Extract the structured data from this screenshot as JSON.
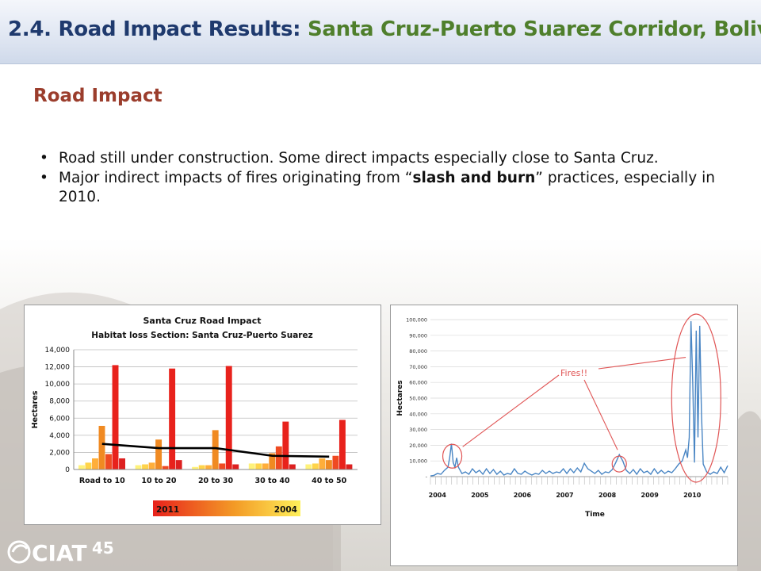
{
  "slide": {
    "title_prefix": "2.4.  Road Impact Results: ",
    "title_suffix": "Santa Cruz-Puerto Suarez Corridor, Bolivia",
    "subheading": "Road Impact",
    "bullets": [
      {
        "parts": [
          {
            "text": "Road still under construction.  Some direct impacts especially close to Santa Cruz.",
            "bold": false
          }
        ]
      },
      {
        "parts": [
          {
            "text": "Major indirect impacts of fires originating from “",
            "bold": false
          },
          {
            "text": "slash and burn",
            "bold": true
          },
          {
            "text": "” practices, especially in 2010.",
            "bold": false
          }
        ]
      }
    ],
    "logo_text": "CIAT",
    "logo_number": "45"
  },
  "colors": {
    "title_dark": "#1f3a6e",
    "title_green": "#4f7f2c",
    "subheading": "#9b3d2c",
    "line_blue": "#4a86c4",
    "annotation_red": "#e05555"
  },
  "chart_data": [
    {
      "type": "bar",
      "title": "Santa Cruz Road Impact",
      "subtitle": "Habitat loss Section: Santa Cruz-Puerto Suarez",
      "ylabel": "Hectares",
      "xlabel": "",
      "ylim": [
        0,
        14000
      ],
      "yticks": [
        0,
        2000,
        4000,
        6000,
        8000,
        10000,
        12000,
        14000
      ],
      "ytick_labels": [
        "0",
        "2,000",
        "4,000",
        "6,000",
        "8,000",
        "10,000",
        "12,000",
        "14,000"
      ],
      "grid": true,
      "categories": [
        "Road to 10",
        "10 to 20",
        "20 to 30",
        "30 to 40",
        "40 to 50"
      ],
      "series_colors": [
        "#fff27a",
        "#ffd44a",
        "#ffae3a",
        "#f08a22",
        "#ef4a22",
        "#e8221c"
      ],
      "series": [
        {
          "values": [
            500,
            500,
            300,
            700,
            600
          ]
        },
        {
          "values": [
            800,
            600,
            500,
            700,
            700
          ]
        },
        {
          "values": [
            1300,
            800,
            500,
            700,
            1300
          ]
        },
        {
          "values": [
            5100,
            3500,
            4600,
            1900,
            1100
          ]
        },
        {
          "values": [
            1800,
            400,
            700,
            2700,
            1600
          ]
        },
        {
          "values": [
            12200,
            11800,
            12100,
            5600,
            5800
          ]
        }
      ],
      "extra_bars": [
        1300,
        1100,
        600,
        600,
        600
      ],
      "trend_line": [
        3000,
        2500,
        2500,
        1600,
        1500
      ],
      "legend_gradient": {
        "start_label": "2011",
        "end_label": "2004"
      }
    },
    {
      "type": "line",
      "ylabel": "Hectares",
      "xlabel": "Time",
      "ylim": [
        0,
        100000
      ],
      "yticks": [
        0,
        10000,
        20000,
        30000,
        40000,
        50000,
        60000,
        70000,
        80000,
        90000,
        100000
      ],
      "ytick_labels": [
        "-",
        "10,000",
        "20,000",
        "30,000",
        "40,000",
        "50,000",
        "60,000",
        "70,000",
        "80,000",
        "90,000",
        "100,000"
      ],
      "years": [
        "2004",
        "2005",
        "2006",
        "2007",
        "2008",
        "2009",
        "2010"
      ],
      "annotation": "Fires!!",
      "x": [
        0,
        2,
        4,
        6,
        8,
        10,
        11,
        12,
        13,
        14,
        15,
        16,
        18,
        20,
        22,
        24,
        26,
        28,
        30,
        32,
        34,
        36,
        38,
        40,
        42,
        44,
        46,
        48,
        50,
        52,
        54,
        56,
        58,
        60,
        62,
        64,
        66,
        68,
        70,
        72,
        74,
        76,
        78,
        80,
        82,
        84,
        86,
        88,
        90,
        92,
        94,
        96,
        98,
        100,
        102,
        104,
        106,
        108,
        110,
        112,
        114,
        116,
        118,
        120,
        122,
        124,
        126,
        128,
        130,
        132,
        134,
        136,
        138,
        140,
        142,
        144,
        146,
        147,
        148,
        149,
        150,
        151,
        152,
        153,
        154,
        155,
        156,
        158,
        160,
        162,
        164,
        166,
        168,
        170
      ],
      "values": [
        500,
        800,
        2000,
        1500,
        4000,
        6000,
        12000,
        21000,
        9000,
        6000,
        12000,
        6000,
        2000,
        3000,
        1500,
        5000,
        2500,
        4000,
        1500,
        5000,
        2000,
        4500,
        1500,
        3500,
        1000,
        2000,
        1500,
        5000,
        2000,
        1500,
        3500,
        2000,
        1000,
        2000,
        1500,
        4000,
        2000,
        3500,
        2000,
        3000,
        2500,
        5000,
        2000,
        5000,
        2500,
        5500,
        3000,
        8500,
        5000,
        3500,
        2000,
        4000,
        1500,
        3000,
        2500,
        4500,
        9000,
        14000,
        10000,
        4000,
        2000,
        4500,
        1500,
        5000,
        2500,
        3500,
        1500,
        5000,
        2000,
        4000,
        2000,
        3500,
        2500,
        5000,
        8000,
        10000,
        17000,
        12000,
        25000,
        99000,
        60000,
        9000,
        93000,
        25000,
        96000,
        40000,
        8000,
        3000,
        1500,
        3000,
        2000,
        6000,
        2500,
        7000
      ]
    }
  ]
}
